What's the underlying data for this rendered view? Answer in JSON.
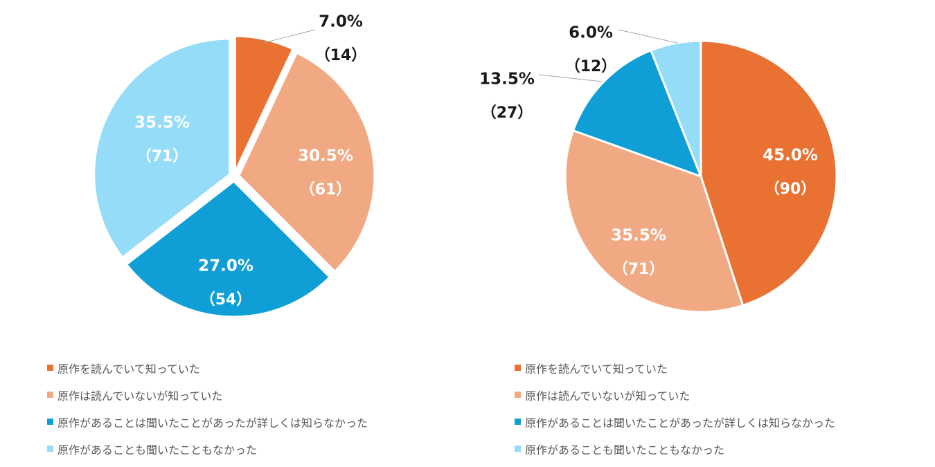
{
  "chart_data": [
    {
      "type": "pie",
      "categories": [
        "原作を読んでいて知っていた",
        "原作は読んでいないが知っていた",
        "原作があることは聞いたことがあったが詳しくは知らなかった",
        "原作があることも聞いたこともなかった"
      ],
      "values": [
        14,
        61,
        54,
        71
      ],
      "percent_labels": [
        "7.0%",
        "30.5%",
        "27.0%",
        "35.5%"
      ],
      "count_labels": [
        "（14）",
        "（61）",
        "（54）",
        "（71）"
      ],
      "colors": [
        "#E97132",
        "#F1A983",
        "#0F9ED5",
        "#94DCF8"
      ],
      "exploded": true,
      "legend_position": "bottom"
    },
    {
      "type": "pie",
      "categories": [
        "原作を読んでいて知っていた",
        "原作は読んでいないが知っていた",
        "原作があることは聞いたことがあったが詳しくは知らなかった",
        "原作があることも聞いたこともなかった"
      ],
      "values": [
        90,
        71,
        27,
        12
      ],
      "percent_labels": [
        "45.0%",
        "35.5%",
        "13.5%",
        "6.0%"
      ],
      "count_labels": [
        "（90）",
        "（71）",
        "（27）",
        "（12）"
      ],
      "colors": [
        "#E97132",
        "#F1A983",
        "#0F9ED5",
        "#94DCF8"
      ],
      "exploded": false,
      "legend_position": "bottom"
    }
  ]
}
